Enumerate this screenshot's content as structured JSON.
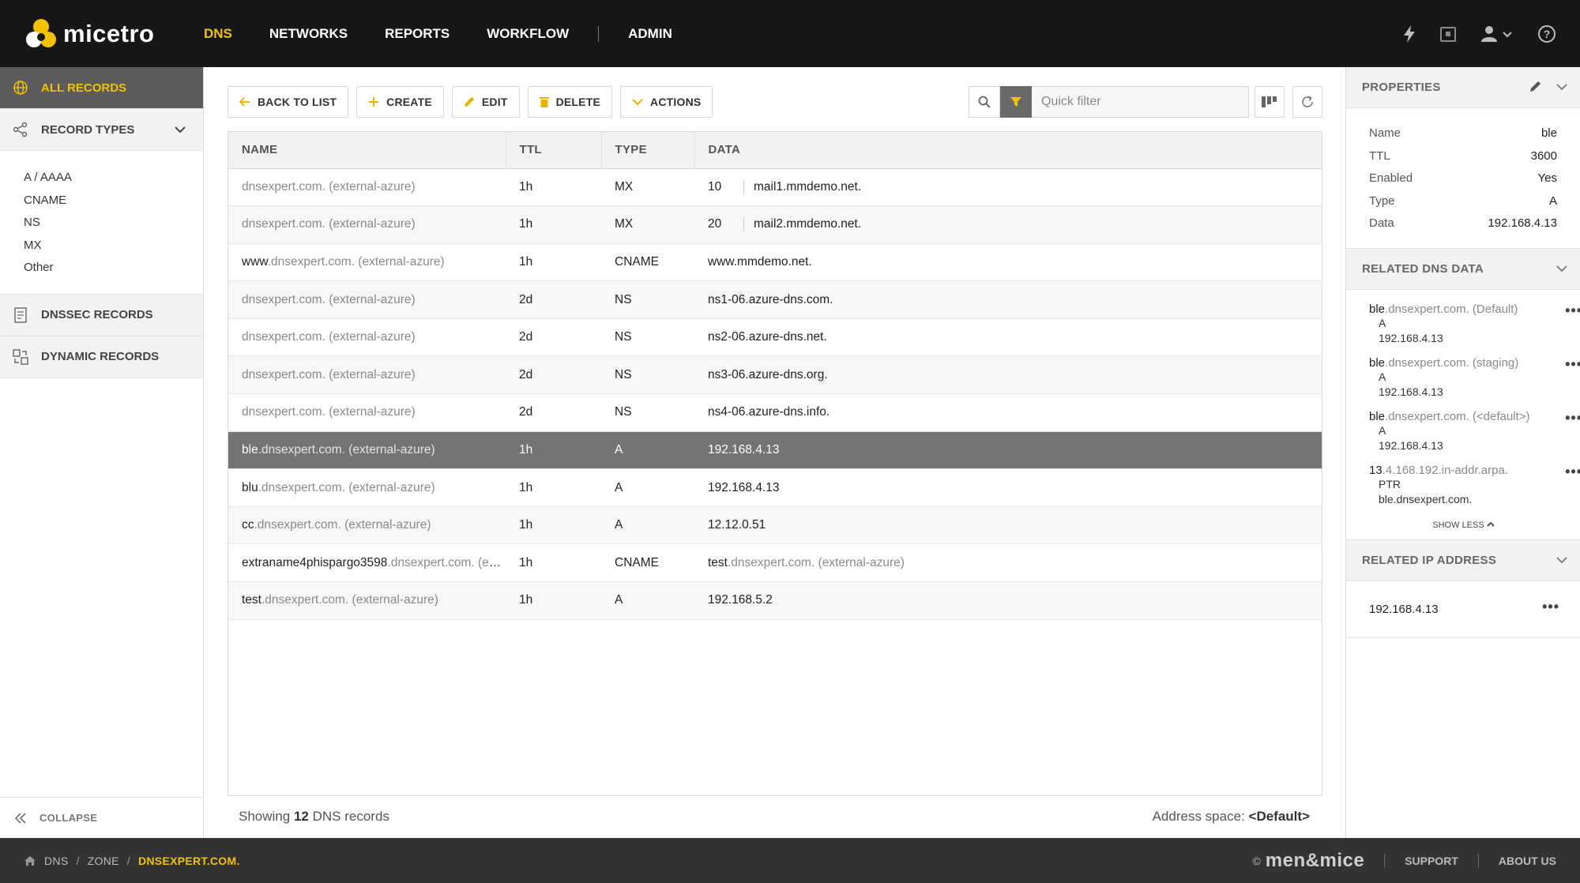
{
  "app": {
    "logo_text": "micetro"
  },
  "nav": {
    "items": [
      {
        "label": "DNS",
        "active": true
      },
      {
        "label": "NETWORKS"
      },
      {
        "label": "REPORTS"
      },
      {
        "label": "WORKFLOW"
      },
      {
        "label": "ADMIN"
      }
    ]
  },
  "top_icons": [
    "bolt-icon",
    "task-icon",
    "user-icon",
    "help-icon"
  ],
  "sidebar": {
    "all_records": "ALL RECORDS",
    "record_types": "RECORD TYPES",
    "types": [
      "A / AAAA",
      "CNAME",
      "NS",
      "MX",
      "Other"
    ],
    "dnssec": "DNSSEC RECORDS",
    "dynamic": "DYNAMIC RECORDS",
    "collapse": "COLLAPSE"
  },
  "toolbar": {
    "back": "BACK TO LIST",
    "create": "CREATE",
    "edit": "EDIT",
    "delete": "DELETE",
    "actions": "ACTIONS",
    "filter_placeholder": "Quick filter"
  },
  "table": {
    "headers": [
      "NAME",
      "TTL",
      "TYPE",
      "DATA"
    ],
    "rows": [
      {
        "name_bold": "",
        "name_gray": "dnsexpert.com. (external-azure)",
        "ttl": "1h",
        "type": "MX",
        "prio": "10",
        "data": "mail1.mmdemo.net."
      },
      {
        "name_bold": "",
        "name_gray": "dnsexpert.com. (external-azure)",
        "ttl": "1h",
        "type": "MX",
        "prio": "20",
        "data": "mail2.mmdemo.net."
      },
      {
        "name_bold": "www",
        "name_gray": ".dnsexpert.com. (external-azure)",
        "ttl": "1h",
        "type": "CNAME",
        "prio": "",
        "data": "www.mmdemo.net."
      },
      {
        "name_bold": "",
        "name_gray": "dnsexpert.com. (external-azure)",
        "ttl": "2d",
        "type": "NS",
        "prio": "",
        "data": "ns1-06.azure-dns.com."
      },
      {
        "name_bold": "",
        "name_gray": "dnsexpert.com. (external-azure)",
        "ttl": "2d",
        "type": "NS",
        "prio": "",
        "data": "ns2-06.azure-dns.net."
      },
      {
        "name_bold": "",
        "name_gray": "dnsexpert.com. (external-azure)",
        "ttl": "2d",
        "type": "NS",
        "prio": "",
        "data": "ns3-06.azure-dns.org."
      },
      {
        "name_bold": "",
        "name_gray": "dnsexpert.com. (external-azure)",
        "ttl": "2d",
        "type": "NS",
        "prio": "",
        "data": "ns4-06.azure-dns.info."
      },
      {
        "name_bold": "ble",
        "name_gray": ".dnsexpert.com. (external-azure)",
        "ttl": "1h",
        "type": "A",
        "prio": "",
        "data": "192.168.4.13",
        "selected": true
      },
      {
        "name_bold": "blu",
        "name_gray": ".dnsexpert.com. (external-azure)",
        "ttl": "1h",
        "type": "A",
        "prio": "",
        "data": "192.168.4.13"
      },
      {
        "name_bold": "cc",
        "name_gray": ".dnsexpert.com. (external-azure)",
        "ttl": "1h",
        "type": "A",
        "prio": "",
        "data": "12.12.0.51"
      },
      {
        "name_bold": "extraname4phispargo3598",
        "name_gray": ".dnsexpert.com. (external-azure)",
        "ttl": "1h",
        "type": "CNAME",
        "prio": "",
        "data": "test",
        "data_gray": ".dnsexpert.com. (external-azure)"
      },
      {
        "name_bold": "test",
        "name_gray": ".dnsexpert.com. (external-azure)",
        "ttl": "1h",
        "type": "A",
        "prio": "",
        "data": "192.168.5.2"
      }
    ]
  },
  "status": {
    "prefix": "Showing",
    "count": "12",
    "suffix": "DNS records",
    "addr_label": "Address space:",
    "addr_value": "<Default>"
  },
  "properties": {
    "title": "PROPERTIES",
    "rows": [
      {
        "k": "Name",
        "v": "ble"
      },
      {
        "k": "TTL",
        "v": "3600"
      },
      {
        "k": "Enabled",
        "v": "Yes"
      },
      {
        "k": "Type",
        "v": "A"
      },
      {
        "k": "Data",
        "v": "192.168.4.13"
      }
    ]
  },
  "related_dns": {
    "title": "RELATED DNS DATA",
    "items": [
      {
        "b": "ble",
        "g": ".dnsexpert.com. (Default)",
        "type": "A",
        "data": "192.168.4.13"
      },
      {
        "b": "ble",
        "g": ".dnsexpert.com. (staging)",
        "type": "A",
        "data": "192.168.4.13"
      },
      {
        "b": "ble",
        "g": ".dnsexpert.com. (<default>)",
        "type": "A",
        "data": "192.168.4.13"
      },
      {
        "b": "13",
        "g": ".4.168.192.in-addr.arpa.",
        "type": "PTR",
        "data": "ble.dnsexpert.com."
      }
    ],
    "show_less": "SHOW LESS"
  },
  "related_ip": {
    "title": "RELATED IP ADDRESS",
    "ip": "192.168.4.13"
  },
  "footer": {
    "crumbs": [
      "DNS",
      "ZONE",
      "DNSEXPERT.COM."
    ],
    "copy": "©",
    "brand": "men&mice",
    "support": "SUPPORT",
    "about": "ABOUT US"
  },
  "colors": {
    "accent": "#f2c200",
    "topbar": "#171717",
    "selected_row": "#747474"
  }
}
